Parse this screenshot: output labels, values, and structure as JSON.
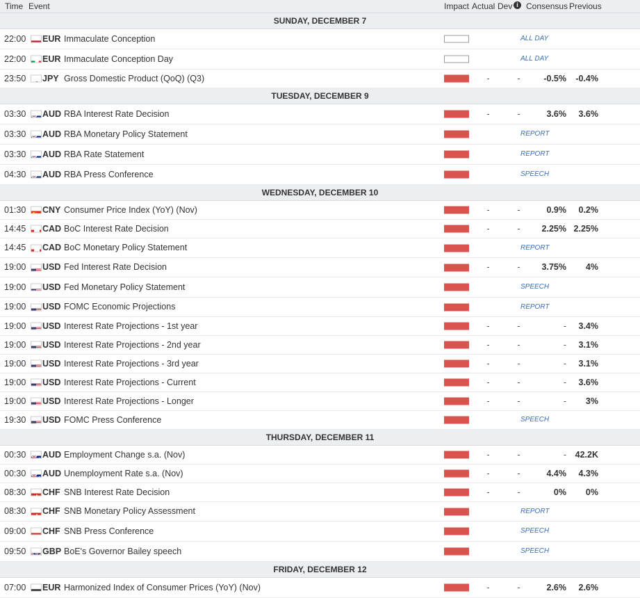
{
  "header": {
    "time": "Time",
    "event": "Event",
    "impact": "Impact",
    "actual": "Actual",
    "dev": "Dev",
    "info_icon": "i",
    "consensus": "Consensus",
    "previous": "Previous"
  },
  "days": [
    {
      "label": "SUNDAY, DECEMBER 7",
      "rows": [
        {
          "time": "22:00",
          "flag": "es",
          "ccy": "EUR",
          "event": "Immaculate Conception",
          "impact": "none",
          "actual": "",
          "dev": "",
          "tag": "ALL DAY",
          "consensus": "",
          "previous": ""
        },
        {
          "time": "22:00",
          "flag": "it",
          "ccy": "EUR",
          "event": "Immaculate Conception Day",
          "impact": "none",
          "actual": "",
          "dev": "",
          "tag": "ALL DAY",
          "consensus": "",
          "previous": ""
        },
        {
          "time": "23:50",
          "flag": "jp",
          "ccy": "JPY",
          "event": "Gross Domestic Product (QoQ) (Q3)",
          "impact": "high",
          "actual": "-",
          "dev": "-",
          "tag": "",
          "consensus": "-0.5%",
          "previous": "-0.4%"
        }
      ]
    },
    {
      "label": "TUESDAY, DECEMBER 9",
      "rows": [
        {
          "time": "03:30",
          "flag": "au",
          "ccy": "AUD",
          "event": "RBA Interest Rate Decision",
          "impact": "high",
          "actual": "-",
          "dev": "-",
          "tag": "",
          "consensus": "3.6%",
          "previous": "3.6%"
        },
        {
          "time": "03:30",
          "flag": "au",
          "ccy": "AUD",
          "event": "RBA Monetary Policy Statement",
          "impact": "high",
          "actual": "",
          "dev": "",
          "tag": "REPORT",
          "consensus": "",
          "previous": ""
        },
        {
          "time": "03:30",
          "flag": "au",
          "ccy": "AUD",
          "event": "RBA Rate Statement",
          "impact": "high",
          "actual": "",
          "dev": "",
          "tag": "REPORT",
          "consensus": "",
          "previous": ""
        },
        {
          "time": "04:30",
          "flag": "au",
          "ccy": "AUD",
          "event": "RBA Press Conference",
          "impact": "high",
          "actual": "",
          "dev": "",
          "tag": "SPEECH",
          "consensus": "",
          "previous": ""
        }
      ]
    },
    {
      "label": "WEDNESDAY, DECEMBER 10",
      "rows": [
        {
          "time": "01:30",
          "flag": "cn",
          "ccy": "CNY",
          "event": "Consumer Price Index (YoY) (Nov)",
          "impact": "high",
          "actual": "-",
          "dev": "-",
          "tag": "",
          "consensus": "0.9%",
          "previous": "0.2%"
        },
        {
          "time": "14:45",
          "flag": "ca",
          "ccy": "CAD",
          "event": "BoC Interest Rate Decision",
          "impact": "high",
          "actual": "-",
          "dev": "-",
          "tag": "",
          "consensus": "2.25%",
          "previous": "2.25%"
        },
        {
          "time": "14:45",
          "flag": "ca",
          "ccy": "CAD",
          "event": "BoC Monetary Policy Statement",
          "impact": "high",
          "actual": "",
          "dev": "",
          "tag": "REPORT",
          "consensus": "",
          "previous": ""
        },
        {
          "time": "19:00",
          "flag": "us",
          "ccy": "USD",
          "event": "Fed Interest Rate Decision",
          "impact": "high",
          "actual": "-",
          "dev": "-",
          "tag": "",
          "consensus": "3.75%",
          "previous": "4%"
        },
        {
          "time": "19:00",
          "flag": "us",
          "ccy": "USD",
          "event": "Fed Monetary Policy Statement",
          "impact": "high",
          "actual": "",
          "dev": "",
          "tag": "SPEECH",
          "consensus": "",
          "previous": ""
        },
        {
          "time": "19:00",
          "flag": "us",
          "ccy": "USD",
          "event": "FOMC Economic Projections",
          "impact": "high",
          "actual": "",
          "dev": "",
          "tag": "REPORT",
          "consensus": "",
          "previous": ""
        },
        {
          "time": "19:00",
          "flag": "us",
          "ccy": "USD",
          "event": "Interest Rate Projections - 1st year",
          "impact": "high",
          "actual": "-",
          "dev": "-",
          "tag": "",
          "consensus": "-",
          "previous": "3.4%"
        },
        {
          "time": "19:00",
          "flag": "us",
          "ccy": "USD",
          "event": "Interest Rate Projections - 2nd year",
          "impact": "high",
          "actual": "-",
          "dev": "-",
          "tag": "",
          "consensus": "-",
          "previous": "3.1%"
        },
        {
          "time": "19:00",
          "flag": "us",
          "ccy": "USD",
          "event": "Interest Rate Projections - 3rd year",
          "impact": "high",
          "actual": "-",
          "dev": "-",
          "tag": "",
          "consensus": "-",
          "previous": "3.1%"
        },
        {
          "time": "19:00",
          "flag": "us",
          "ccy": "USD",
          "event": "Interest Rate Projections - Current",
          "impact": "high",
          "actual": "-",
          "dev": "-",
          "tag": "",
          "consensus": "-",
          "previous": "3.6%"
        },
        {
          "time": "19:00",
          "flag": "us",
          "ccy": "USD",
          "event": "Interest Rate Projections - Longer",
          "impact": "high",
          "actual": "-",
          "dev": "-",
          "tag": "",
          "consensus": "-",
          "previous": "3%"
        },
        {
          "time": "19:30",
          "flag": "us",
          "ccy": "USD",
          "event": "FOMC Press Conference",
          "impact": "high",
          "actual": "",
          "dev": "",
          "tag": "SPEECH",
          "consensus": "",
          "previous": ""
        }
      ]
    },
    {
      "label": "THURSDAY, DECEMBER 11",
      "rows": [
        {
          "time": "00:30",
          "flag": "au",
          "ccy": "AUD",
          "event": "Employment Change s.a. (Nov)",
          "impact": "high",
          "actual": "-",
          "dev": "-",
          "tag": "",
          "consensus": "-",
          "previous": "42.2K"
        },
        {
          "time": "00:30",
          "flag": "au",
          "ccy": "AUD",
          "event": "Unemployment Rate s.a. (Nov)",
          "impact": "high",
          "actual": "-",
          "dev": "-",
          "tag": "",
          "consensus": "4.4%",
          "previous": "4.3%"
        },
        {
          "time": "08:30",
          "flag": "ch",
          "ccy": "CHF",
          "event": "SNB Interest Rate Decision",
          "impact": "high",
          "actual": "-",
          "dev": "-",
          "tag": "",
          "consensus": "0%",
          "previous": "0%"
        },
        {
          "time": "08:30",
          "flag": "ch",
          "ccy": "CHF",
          "event": "SNB Monetary Policy Assessment",
          "impact": "high",
          "actual": "",
          "dev": "",
          "tag": "REPORT",
          "consensus": "",
          "previous": ""
        },
        {
          "time": "09:00",
          "flag": "ch",
          "ccy": "CHF",
          "event": "SNB Press Conference",
          "impact": "high",
          "actual": "",
          "dev": "",
          "tag": "SPEECH",
          "consensus": "",
          "previous": ""
        },
        {
          "time": "09:50",
          "flag": "gb",
          "ccy": "GBP",
          "event": "BoE's Governor Bailey speech",
          "impact": "high",
          "actual": "",
          "dev": "",
          "tag": "SPEECH",
          "consensus": "",
          "previous": ""
        }
      ]
    },
    {
      "label": "FRIDAY, DECEMBER 12",
      "rows": [
        {
          "time": "07:00",
          "flag": "de",
          "ccy": "EUR",
          "event": "Harmonized Index of Consumer Prices (YoY) (Nov)",
          "impact": "high",
          "actual": "-",
          "dev": "-",
          "tag": "",
          "consensus": "2.6%",
          "previous": "2.6%"
        }
      ]
    }
  ],
  "colors": {
    "impact_high": "#d9534f",
    "tag_link": "#3b6fb6",
    "header_bg": "#eceef1"
  }
}
